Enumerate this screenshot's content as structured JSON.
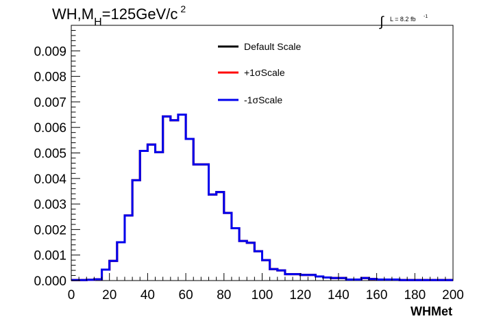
{
  "chart_data": {
    "type": "step-histogram",
    "title": "WH,M",
    "title_sub": "H",
    "title_rest": "=125GeV/c",
    "title_sup": "2",
    "lumi_prefix": "L = 8.2 fb",
    "lumi_sup": "-1",
    "xlabel": "WHMet",
    "ylabel": "",
    "xlim": [
      0,
      200
    ],
    "ylim": [
      0,
      0.01
    ],
    "xticks": [
      0,
      20,
      40,
      60,
      80,
      100,
      120,
      140,
      160,
      180,
      200
    ],
    "xtick_labels": [
      "0",
      "20",
      "40",
      "60",
      "80",
      "100",
      "120",
      "140",
      "160",
      "180",
      "200"
    ],
    "yticks": [
      0,
      0.001,
      0.002,
      0.003,
      0.004,
      0.005,
      0.006,
      0.007,
      0.008,
      0.009
    ],
    "ytick_labels": [
      "0.000",
      "0.001",
      "0.002",
      "0.003",
      "0.004",
      "0.005",
      "0.006",
      "0.007",
      "0.008",
      "0.009"
    ],
    "grid": false,
    "legend_position": "top-center",
    "bin_edges": [
      0,
      4,
      8,
      12,
      16,
      20,
      24,
      28,
      32,
      36,
      40,
      44,
      48,
      52,
      56,
      60,
      64,
      68,
      72,
      76,
      80,
      84,
      88,
      92,
      96,
      100,
      104,
      108,
      112,
      116,
      120,
      124,
      128,
      132,
      136,
      140,
      144,
      148,
      152,
      156,
      160,
      164,
      168,
      172,
      176,
      180,
      184,
      188,
      192,
      196,
      200
    ],
    "series": [
      {
        "name": "Default Scale",
        "color": "#000000",
        "values": [
          2e-05,
          2e-05,
          3e-05,
          5e-05,
          0.00043,
          0.00077,
          0.0015,
          0.00255,
          0.00393,
          0.00508,
          0.00533,
          0.00503,
          0.00643,
          0.00628,
          0.0065,
          0.00555,
          0.00455,
          0.00455,
          0.00337,
          0.00347,
          0.00265,
          0.00205,
          0.00155,
          0.00148,
          0.00115,
          0.0008,
          0.00045,
          0.0004,
          0.00025,
          0.00025,
          0.00022,
          0.00022,
          0.00016,
          0.00012,
          0.0001,
          0.0001,
          4e-05,
          4e-05,
          0.0001,
          6e-05,
          4e-05,
          4e-05,
          4e-05,
          2e-05,
          2e-05,
          2e-05,
          2e-05,
          2e-05,
          2e-05,
          2e-05
        ]
      },
      {
        "name": "+1σScale",
        "color": "#ff0000",
        "values": [
          2e-05,
          2e-05,
          3e-05,
          5e-05,
          0.00043,
          0.00077,
          0.0015,
          0.00255,
          0.00393,
          0.00508,
          0.00533,
          0.00503,
          0.00643,
          0.00628,
          0.0065,
          0.00555,
          0.00455,
          0.00455,
          0.00337,
          0.00347,
          0.00265,
          0.00205,
          0.00155,
          0.00148,
          0.00115,
          0.0008,
          0.00045,
          0.0004,
          0.00025,
          0.00025,
          0.00022,
          0.00022,
          0.00016,
          0.00012,
          0.0001,
          0.0001,
          4e-05,
          4e-05,
          0.0001,
          6e-05,
          4e-05,
          4e-05,
          4e-05,
          2e-05,
          2e-05,
          2e-05,
          2e-05,
          2e-05,
          2e-05,
          2e-05
        ]
      },
      {
        "name": "-1σScale",
        "color": "#0000ee",
        "values": [
          2e-05,
          2e-05,
          3e-05,
          5e-05,
          0.00043,
          0.00077,
          0.0015,
          0.00255,
          0.00393,
          0.00508,
          0.00533,
          0.00503,
          0.00643,
          0.00628,
          0.0065,
          0.00555,
          0.00455,
          0.00455,
          0.00337,
          0.00347,
          0.00265,
          0.00205,
          0.00155,
          0.00148,
          0.00115,
          0.0008,
          0.00045,
          0.0004,
          0.00025,
          0.00025,
          0.00022,
          0.00022,
          0.00016,
          0.00012,
          0.0001,
          0.0001,
          4e-05,
          4e-05,
          0.0001,
          6e-05,
          4e-05,
          4e-05,
          4e-05,
          2e-05,
          2e-05,
          2e-05,
          2e-05,
          2e-05,
          2e-05,
          2e-05
        ]
      }
    ]
  }
}
